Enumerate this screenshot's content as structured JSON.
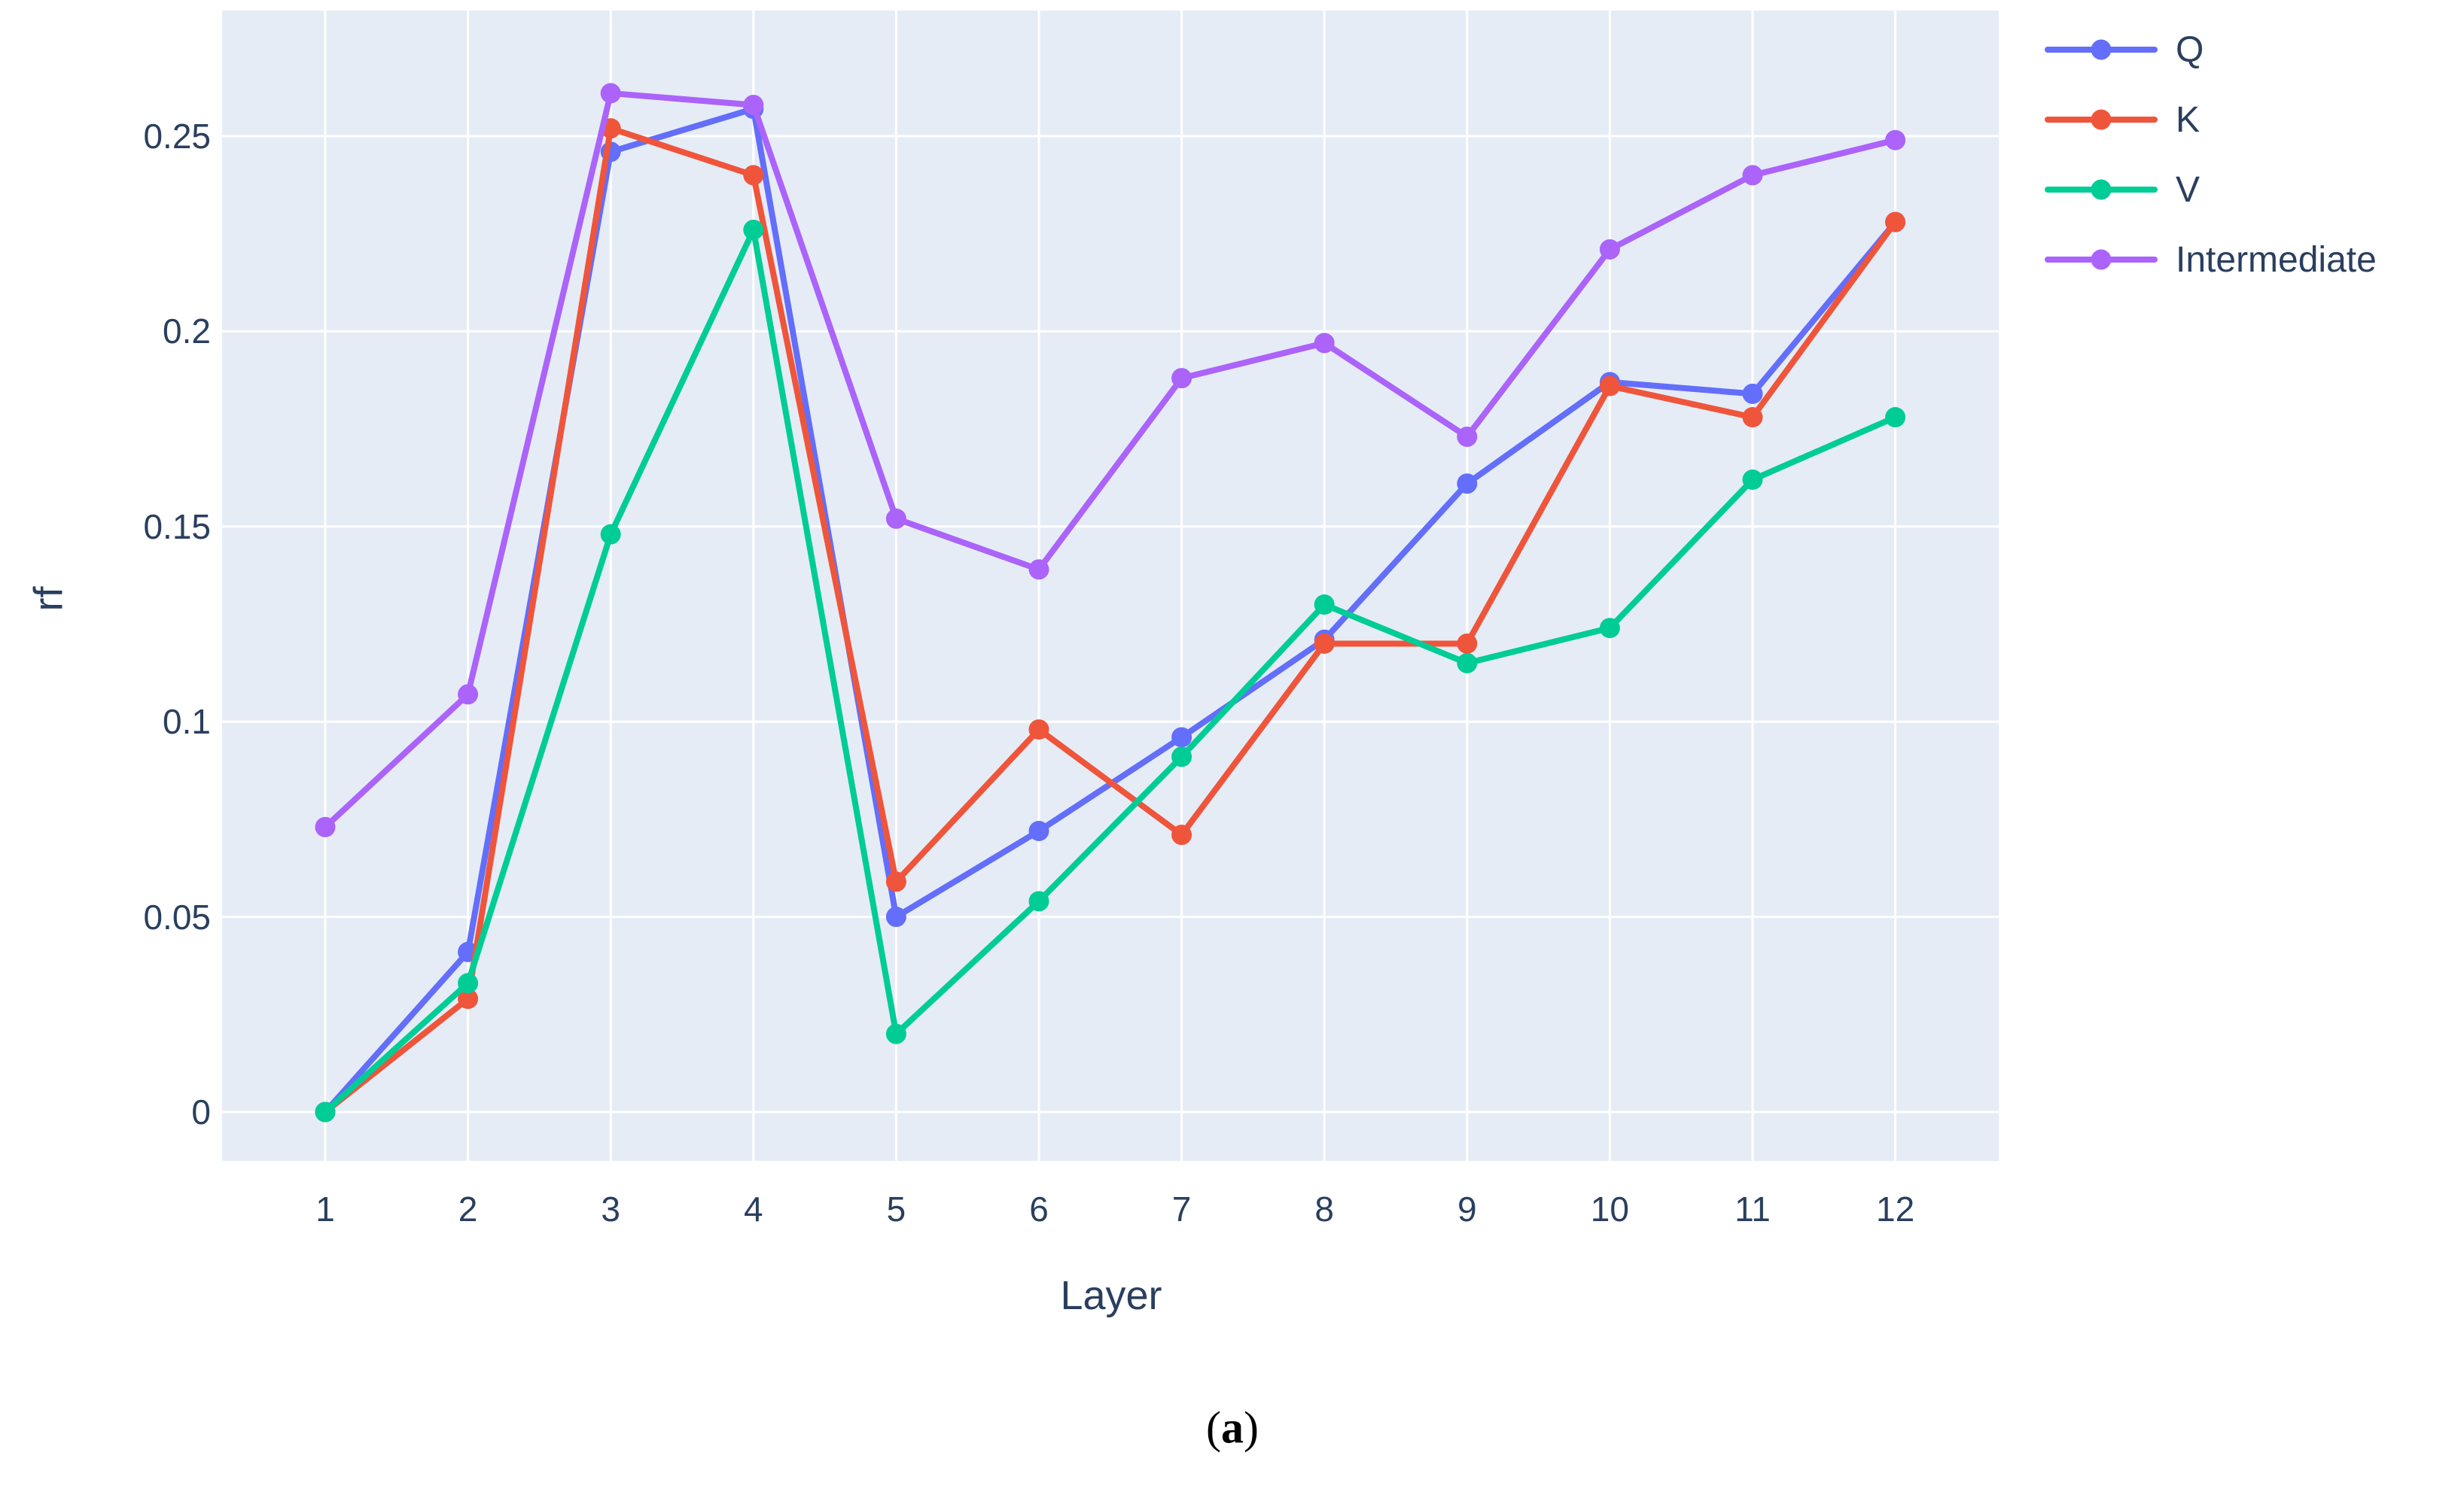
{
  "chart_data": {
    "type": "line",
    "mode": "lines+markers",
    "title": "",
    "xlabel": "Layer",
    "ylabel": "rf",
    "categories": [
      1,
      2,
      3,
      4,
      5,
      6,
      7,
      8,
      9,
      10,
      11,
      12
    ],
    "yticks": [
      0,
      0.05,
      0.1,
      0.15,
      0.2,
      0.25
    ],
    "ytick_labels": [
      "0",
      "0.05",
      "0.1",
      "0.15",
      "0.2",
      "0.25"
    ],
    "ylim": [
      0,
      0.25
    ],
    "grid": true,
    "legend_position": "right-top",
    "plot_bg_color": "#E5ECF6",
    "grid_color": "#FFFFFF",
    "text_color": "#2a3f5f",
    "series": [
      {
        "name": "Q",
        "color": "#636EFA",
        "values": [
          0.0,
          0.041,
          0.246,
          0.257,
          0.05,
          0.072,
          0.096,
          0.121,
          0.161,
          0.187,
          0.184,
          0.228
        ]
      },
      {
        "name": "K",
        "color": "#EF553B",
        "values": [
          0.0,
          0.029,
          0.252,
          0.24,
          0.059,
          0.098,
          0.071,
          0.12,
          0.12,
          0.186,
          0.178,
          0.228
        ]
      },
      {
        "name": "V",
        "color": "#00CC96",
        "values": [
          0.0,
          0.033,
          0.148,
          0.226,
          0.02,
          0.054,
          0.091,
          0.13,
          0.115,
          0.124,
          0.162,
          0.178
        ]
      },
      {
        "name": "Intermediate",
        "color": "#AB63FA",
        "values": [
          0.073,
          0.107,
          0.261,
          0.258,
          0.152,
          0.139,
          0.188,
          0.197,
          0.173,
          0.221,
          0.24,
          0.249
        ]
      }
    ]
  },
  "caption": {
    "open": "(",
    "letter": "a",
    "close": ")"
  }
}
